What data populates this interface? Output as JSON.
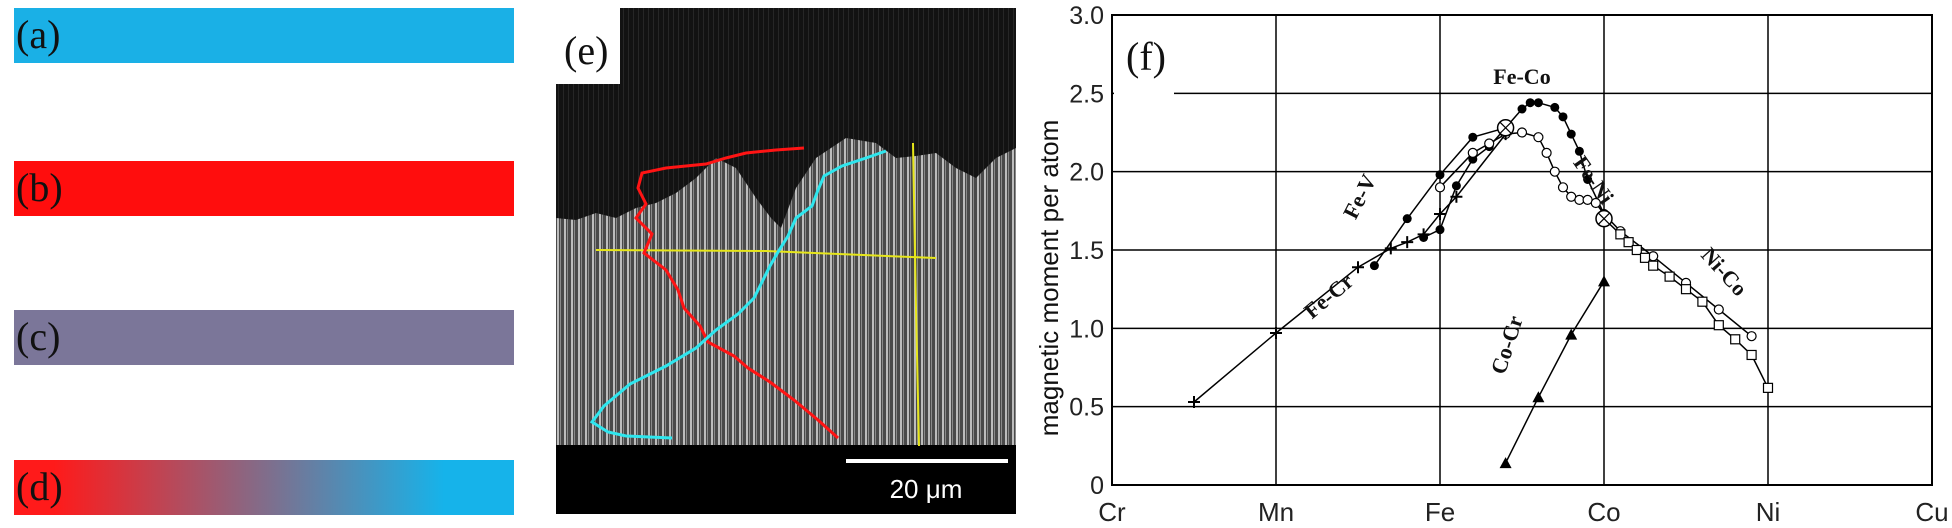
{
  "color_bars": [
    {
      "label": "(a)",
      "color": "#1ab0e6"
    },
    {
      "label": "(b)",
      "color": "#ff0d0d"
    },
    {
      "label": "(c)",
      "color": "#7b7699"
    },
    {
      "label": "(d)",
      "gradient_start": "#ff1a1a",
      "gradient_end": "#16b3ea"
    }
  ],
  "micrograph": {
    "label": "(e)",
    "scale_bar": "20 μm",
    "line_colors": {
      "red": "#ff1414",
      "cyan": "#2ee6ee",
      "yellow": "#e6e61a"
    }
  },
  "chart_data": {
    "type": "line",
    "panel_label": "(f)",
    "ylabel": "magnetic moment per atom",
    "xlabel": "",
    "categories": [
      "Cr",
      "Mn",
      "Fe",
      "Co",
      "Ni",
      "Cu"
    ],
    "xlim": [
      24,
      29
    ],
    "ylim": [
      0,
      3.0
    ],
    "y_ticks": [
      "0",
      "0.5",
      "1.0",
      "1.5",
      "2.0",
      "2.5",
      "3.0"
    ],
    "grid": true,
    "series": [
      {
        "name": "Fe-Co",
        "marker": "filled-circle",
        "x": [
          25.9,
          26.0,
          26.1,
          26.2,
          26.3,
          26.4,
          26.5,
          26.55,
          26.6,
          26.7,
          26.75,
          26.8,
          26.85,
          26.9,
          27.0
        ],
        "y": [
          1.58,
          1.63,
          1.91,
          2.08,
          2.16,
          2.28,
          2.4,
          2.44,
          2.44,
          2.41,
          2.35,
          2.24,
          2.13,
          1.95,
          1.73
        ]
      },
      {
        "name": "Fe-Ni",
        "marker": "open-circle",
        "x": [
          26.0,
          26.2,
          26.3,
          26.4,
          26.5,
          26.6,
          26.65,
          26.7,
          26.75,
          26.8,
          26.85,
          26.9,
          26.95,
          27.0,
          27.1,
          27.3,
          27.5,
          27.7,
          27.9
        ],
        "y": [
          1.9,
          2.12,
          2.18,
          2.24,
          2.25,
          2.22,
          2.12,
          2.0,
          1.9,
          1.84,
          1.82,
          1.82,
          1.8,
          1.73,
          1.62,
          1.46,
          1.29,
          1.12,
          0.95
        ]
      },
      {
        "name": "Fe-V",
        "marker": "filled-circle",
        "x": [
          25.6,
          25.8,
          26.0,
          26.2,
          26.4
        ],
        "y": [
          1.4,
          1.7,
          1.98,
          2.22,
          2.28
        ]
      },
      {
        "name": "Fe-Cr",
        "marker": "cross",
        "x": [
          24.5,
          25.0,
          25.5,
          25.7,
          25.8,
          25.9,
          26.0,
          26.1,
          26.4
        ],
        "y": [
          0.53,
          0.97,
          1.39,
          1.51,
          1.55,
          1.6,
          1.73,
          1.84,
          2.24
        ]
      },
      {
        "name": "Ni-Co",
        "marker": "open-square",
        "x": [
          27.0,
          27.1,
          27.15,
          27.2,
          27.25,
          27.3,
          27.4,
          27.5,
          27.6,
          27.7,
          27.8,
          27.9,
          28.0
        ],
        "y": [
          1.7,
          1.6,
          1.55,
          1.5,
          1.45,
          1.4,
          1.33,
          1.25,
          1.17,
          1.02,
          0.93,
          0.83,
          0.62
        ]
      },
      {
        "name": "Co-Cr",
        "marker": "filled-triangle",
        "x": [
          26.4,
          26.6,
          26.8,
          27.0
        ],
        "y": [
          0.14,
          0.56,
          0.96,
          1.3
        ]
      }
    ],
    "annotations": [
      "Fe-Co",
      "Fe-V",
      "Fe-Ni",
      "Fe-Cr",
      "Ni-Co",
      "Co-Cr"
    ]
  }
}
